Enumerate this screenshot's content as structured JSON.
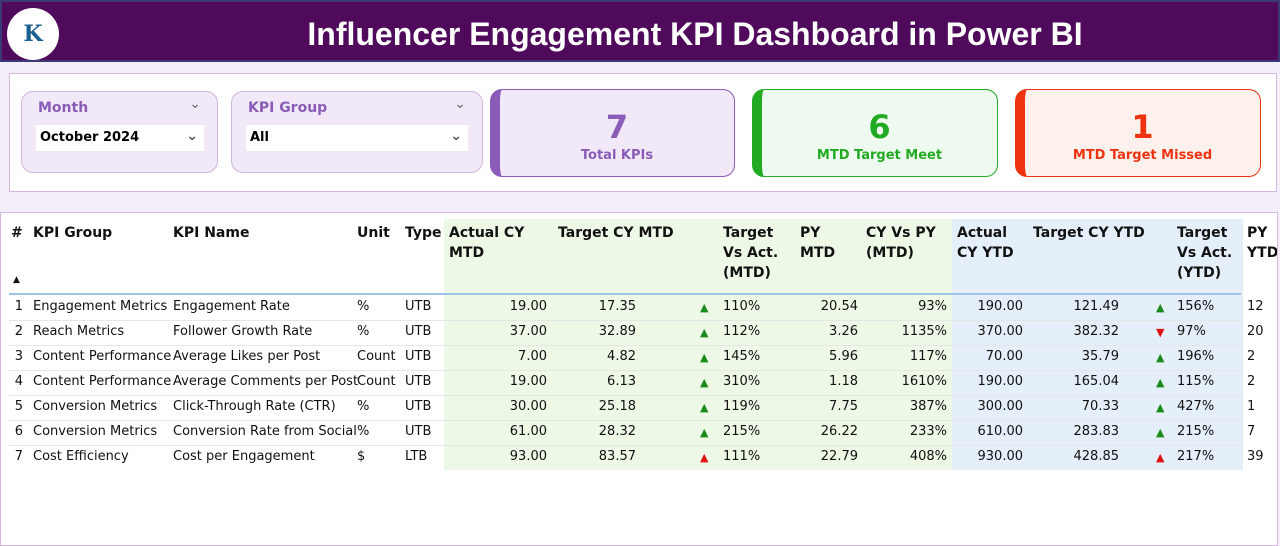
{
  "header": {
    "title": "Influencer Engagement KPI Dashboard in Power BI",
    "logo_text": "K"
  },
  "slicers": [
    {
      "label": "Month",
      "value": "October 2024"
    },
    {
      "label": "KPI Group",
      "value": "All"
    }
  ],
  "cards": [
    {
      "value": "7",
      "label": "Total KPIs",
      "color": "#8a5cb8"
    },
    {
      "value": "6",
      "label": "MTD Target Meet",
      "color": "#22aa22"
    },
    {
      "value": "1",
      "label": "MTD Target Missed",
      "color": "#ee3311"
    }
  ],
  "table": {
    "columns": [
      "#",
      "KPI Group",
      "KPI Name",
      "Unit",
      "Type",
      "Actual CY MTD",
      "Target CY MTD",
      "Target Vs Act. (MTD)",
      "PY MTD",
      "CY Vs PY (MTD)",
      "Actual CY YTD",
      "Target CY YTD",
      "Target Vs Act. (YTD)",
      "PY YTD"
    ],
    "rows": [
      [
        "1",
        "Engagement Metrics",
        "Engagement Rate",
        "%",
        "UTB",
        "19.00",
        "17.35",
        "up",
        "110%",
        "20.54",
        "93%",
        "190.00",
        "121.49",
        "up",
        "156%",
        "12"
      ],
      [
        "2",
        "Reach Metrics",
        "Follower Growth Rate",
        "%",
        "UTB",
        "37.00",
        "32.89",
        "up",
        "112%",
        "3.26",
        "1135%",
        "370.00",
        "382.32",
        "down",
        "97%",
        "20"
      ],
      [
        "3",
        "Content Performance",
        "Average Likes per Post",
        "Count",
        "UTB",
        "7.00",
        "4.82",
        "up",
        "145%",
        "5.96",
        "117%",
        "70.00",
        "35.79",
        "up",
        "196%",
        "2"
      ],
      [
        "4",
        "Content Performance",
        "Average Comments per Post",
        "Count",
        "UTB",
        "19.00",
        "6.13",
        "up",
        "310%",
        "1.18",
        "1610%",
        "190.00",
        "165.04",
        "up",
        "115%",
        "2"
      ],
      [
        "5",
        "Conversion Metrics",
        "Click-Through Rate (CTR)",
        "%",
        "UTB",
        "30.00",
        "25.18",
        "up",
        "119%",
        "7.75",
        "387%",
        "300.00",
        "70.33",
        "up",
        "427%",
        "1"
      ],
      [
        "6",
        "Conversion Metrics",
        "Conversion Rate from Social",
        "%",
        "UTB",
        "61.00",
        "28.32",
        "up",
        "215%",
        "26.22",
        "233%",
        "610.00",
        "283.83",
        "up",
        "215%",
        "7"
      ],
      [
        "7",
        "Cost Efficiency",
        "Cost per Engagement",
        "$",
        "LTB",
        "93.00",
        "83.57",
        "upred",
        "111%",
        "22.79",
        "408%",
        "930.00",
        "428.85",
        "upred",
        "217%",
        "39"
      ]
    ]
  }
}
